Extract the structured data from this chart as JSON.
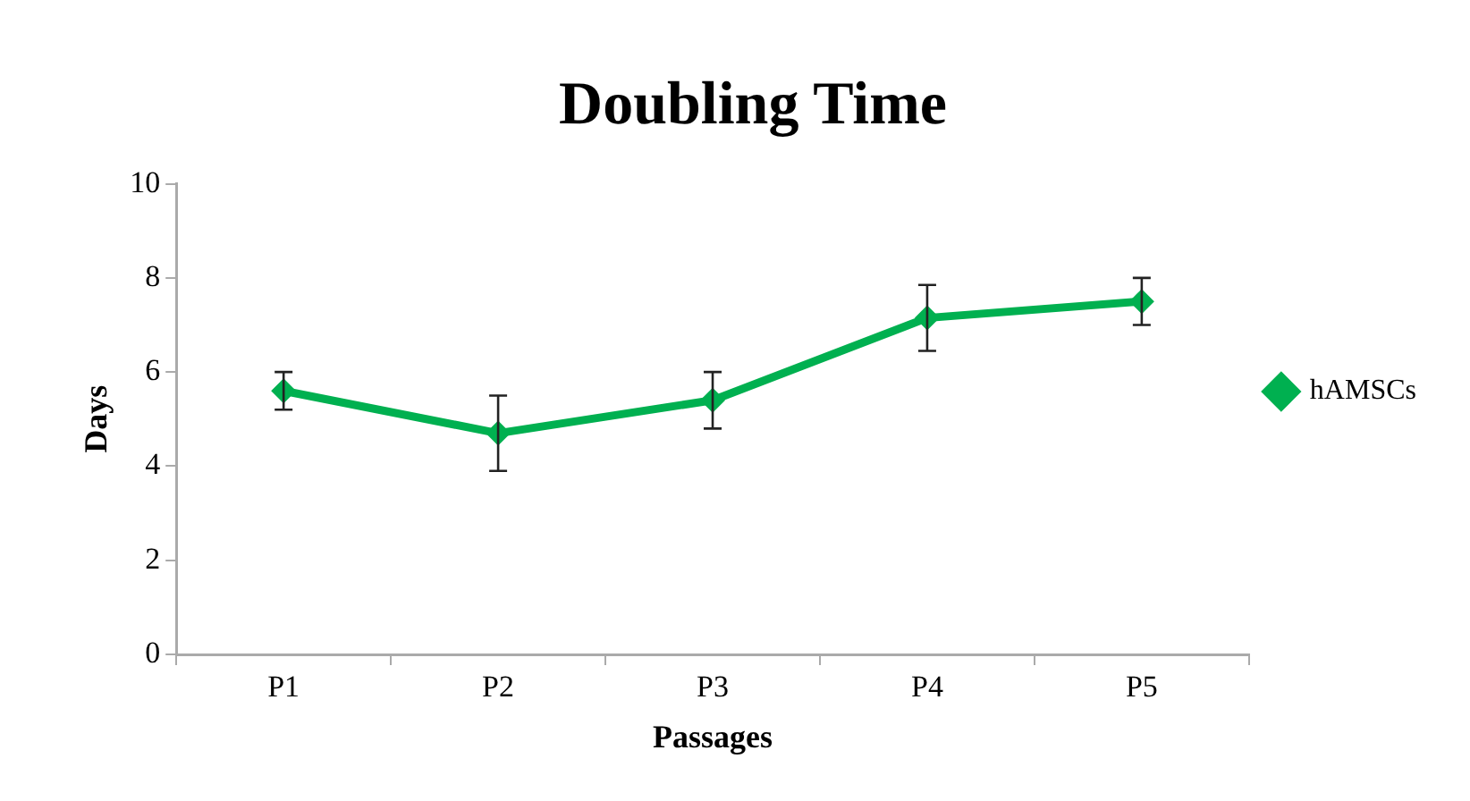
{
  "chart_data": {
    "type": "line",
    "title": "Doubling Time",
    "xlabel": "Passages",
    "ylabel": "Days",
    "categories": [
      "P1",
      "P2",
      "P3",
      "P4",
      "P5"
    ],
    "series": [
      {
        "name": "hAMSCs",
        "color": "#00b050",
        "values": [
          5.6,
          4.7,
          5.4,
          7.15,
          7.5
        ],
        "errors": [
          0.4,
          0.8,
          0.6,
          0.7,
          0.5
        ]
      }
    ],
    "ylim": [
      0,
      10
    ],
    "yticks": [
      0,
      2,
      4,
      6,
      8,
      10
    ],
    "grid": false,
    "legend": "right",
    "marker": "diamond",
    "line_style": "solid"
  }
}
